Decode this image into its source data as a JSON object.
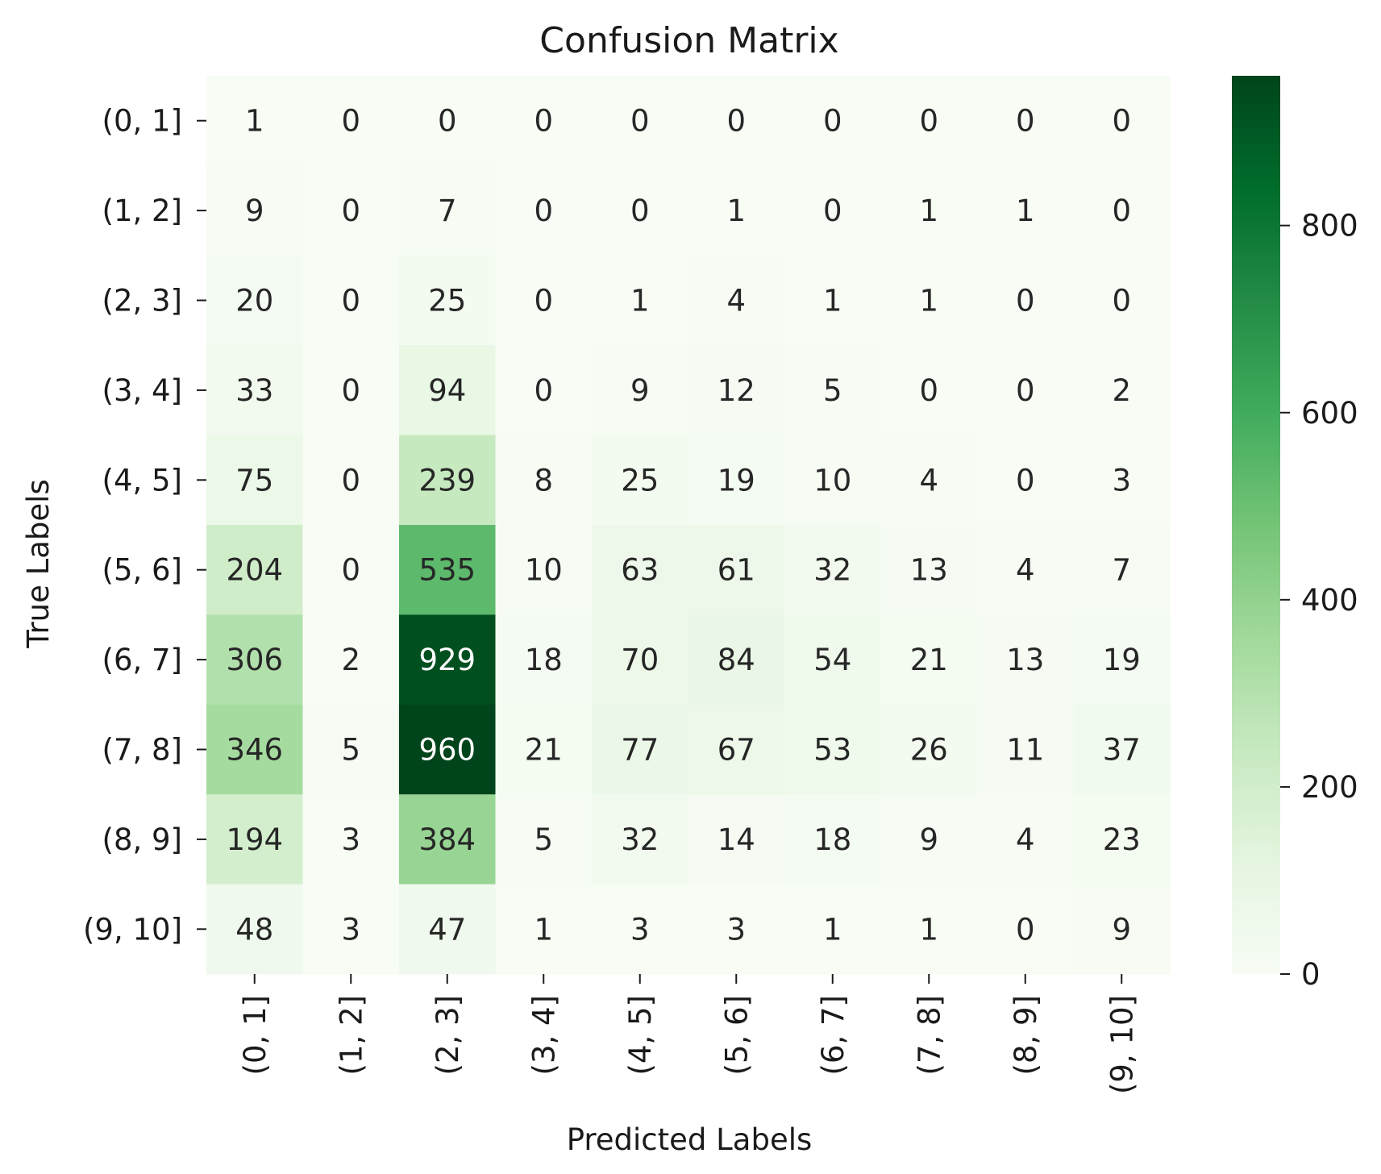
{
  "chart_data": {
    "type": "heatmap",
    "title": "Confusion Matrix",
    "xlabel": "Predicted Labels",
    "ylabel": "True Labels",
    "x_categories": [
      "(0, 1]",
      "(1, 2]",
      "(2, 3]",
      "(3, 4]",
      "(4, 5]",
      "(5, 6]",
      "(6, 7]",
      "(7, 8]",
      "(8, 9]",
      "(9, 10]"
    ],
    "y_categories": [
      "(0, 1]",
      "(1, 2]",
      "(2, 3]",
      "(3, 4]",
      "(4, 5]",
      "(5, 6]",
      "(6, 7]",
      "(7, 8]",
      "(8, 9]",
      "(9, 10]"
    ],
    "values": [
      [
        1,
        0,
        0,
        0,
        0,
        0,
        0,
        0,
        0,
        0
      ],
      [
        9,
        0,
        7,
        0,
        0,
        1,
        0,
        1,
        1,
        0
      ],
      [
        20,
        0,
        25,
        0,
        1,
        4,
        1,
        1,
        0,
        0
      ],
      [
        33,
        0,
        94,
        0,
        9,
        12,
        5,
        0,
        0,
        2
      ],
      [
        75,
        0,
        239,
        8,
        25,
        19,
        10,
        4,
        0,
        3
      ],
      [
        204,
        0,
        535,
        10,
        63,
        61,
        32,
        13,
        4,
        7
      ],
      [
        306,
        2,
        929,
        18,
        70,
        84,
        54,
        21,
        13,
        19
      ],
      [
        346,
        5,
        960,
        21,
        77,
        67,
        53,
        26,
        11,
        37
      ],
      [
        194,
        3,
        384,
        5,
        32,
        14,
        18,
        9,
        4,
        23
      ],
      [
        48,
        3,
        47,
        1,
        3,
        3,
        1,
        1,
        0,
        9
      ]
    ],
    "colormap": "Greens",
    "colorbar": {
      "vmin": 0,
      "vmax": 960,
      "ticks": [
        0,
        200,
        400,
        600,
        800
      ],
      "tick_labels": [
        "0",
        "200",
        "400",
        "600",
        "800"
      ]
    },
    "annotation_colors": {
      "dark": "#262626",
      "light": "#ffffff"
    }
  }
}
